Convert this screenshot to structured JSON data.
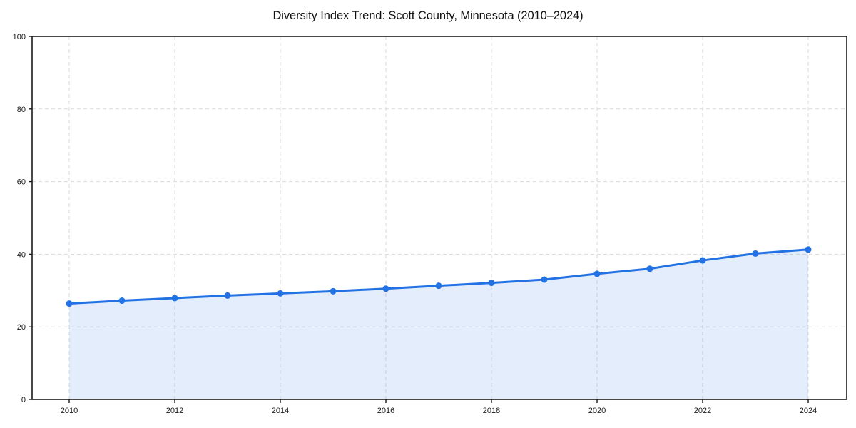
{
  "title": "Diversity Index Trend: Scott County, Minnesota (2010–2024)",
  "chart_data": {
    "type": "area",
    "title": "Diversity Index Trend: Scott County, Minnesota (2010–2024)",
    "x": [
      2010,
      2011,
      2012,
      2013,
      2014,
      2015,
      2016,
      2017,
      2018,
      2019,
      2020,
      2021,
      2022,
      2023,
      2024
    ],
    "series": [
      {
        "name": "Diversity Index",
        "values": [
          26.4,
          27.2,
          27.9,
          28.6,
          29.2,
          29.8,
          30.5,
          31.3,
          32.1,
          33.0,
          34.6,
          36.0,
          38.3,
          40.2,
          41.3
        ]
      }
    ],
    "xticks": [
      2010,
      2012,
      2014,
      2016,
      2018,
      2020,
      2022,
      2024
    ],
    "yticks": [
      0,
      20,
      40,
      60,
      80,
      100
    ],
    "ylim": [
      0,
      100
    ],
    "xlabel": "",
    "ylabel": "",
    "grid": true,
    "grid_style": "dashed",
    "legend": "none",
    "marker": "circle",
    "colors": {
      "line": "#2372e4",
      "fill": "#2372e4",
      "fill_opacity": "0.13",
      "grid": "#d9d9d9",
      "axis": "#1a1a1a",
      "title": "#111111",
      "background": "#ffffff"
    }
  }
}
